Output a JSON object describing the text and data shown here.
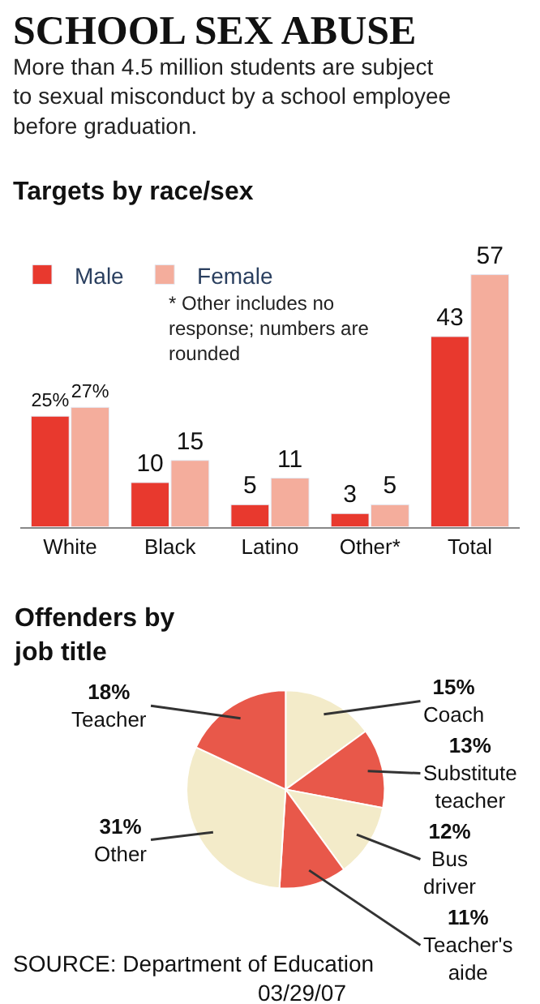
{
  "chart_data": [
    {
      "type": "bar",
      "title": "SCHOOL SEX ABUSE",
      "subtitle": "More than 4.5 million students are subject to sexual misconduct by a school employee before graduation.",
      "annotations": [
        "Targets by race/sex",
        "* Other includes no response; numbers are rounded"
      ],
      "categories": [
        "White",
        "Black",
        "Latino",
        "Other*",
        "Total"
      ],
      "series": [
        {
          "name": "Male",
          "color": "#e8392e",
          "values": [
            25,
            10,
            5,
            3,
            43
          ],
          "value_labels": [
            "25%",
            "10",
            "5",
            "3",
            "43"
          ]
        },
        {
          "name": "Female",
          "color": "#f4ad9c",
          "values": [
            27,
            15,
            11,
            5,
            57
          ],
          "value_labels": [
            "27%",
            "15",
            "11",
            "5",
            "57"
          ]
        }
      ],
      "legend": "top left"
    },
    {
      "type": "pie",
      "title": "Offenders by job title",
      "annotations": [
        "SOURCE: Department of Education",
        "03/29/07"
      ],
      "categories": [
        "Coach",
        "Substitute teacher",
        "Bus driver",
        "Teacher's aide",
        "Other",
        "Teacher"
      ],
      "values": [
        15,
        13,
        12,
        11,
        31,
        18
      ],
      "colors": [
        "#f3ebc9",
        "#e8584a",
        "#f3ebc9",
        "#e8584a",
        "#f3ebc9",
        "#e8584a"
      ],
      "value_labels": [
        "15%",
        "13%",
        "12%",
        "11%",
        "31%",
        "18%"
      ]
    }
  ]
}
